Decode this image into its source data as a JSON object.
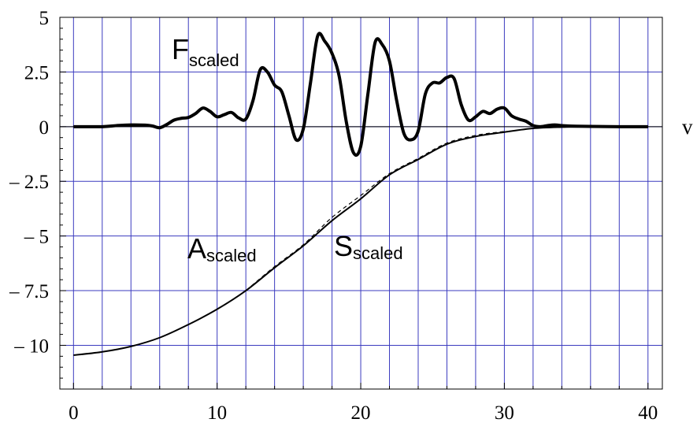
{
  "chart_data": {
    "type": "line",
    "xlabel": "v",
    "ylabel": "",
    "xlim": [
      -0.95,
      41
    ],
    "ylim": [
      -12,
      5
    ],
    "grid": true,
    "grid_color": "#3b3bbf",
    "x_ticks": [
      {
        "value": 0,
        "label": "0"
      },
      {
        "value": 10,
        "label": "10"
      },
      {
        "value": 20,
        "label": "20"
      },
      {
        "value": 30,
        "label": "30"
      },
      {
        "value": 40,
        "label": "40"
      }
    ],
    "y_ticks": [
      {
        "value": 5,
        "label": "5"
      },
      {
        "value": 2.5,
        "label": "2.5"
      },
      {
        "value": 0,
        "label": "0"
      },
      {
        "value": -2.5,
        "label": "– 2.5"
      },
      {
        "value": -5,
        "label": "– 5"
      },
      {
        "value": -7.5,
        "label": "– 7.5"
      },
      {
        "value": -10,
        "label": "– 10"
      }
    ],
    "grid_x": [
      0,
      2,
      4,
      6,
      8,
      10,
      12,
      14,
      16,
      18,
      20,
      22,
      24,
      26,
      28,
      30,
      32,
      34,
      36,
      38,
      40
    ],
    "grid_y": [
      5,
      2.5,
      0,
      -2.5,
      -5,
      -7.5,
      -10
    ],
    "series": [
      {
        "name": "F",
        "subscript": "scaled",
        "style": "thick",
        "x": [
          0,
          2,
          3,
          4,
          5,
          5.5,
          6,
          6.5,
          7,
          7.5,
          8,
          8.5,
          9,
          9.5,
          10,
          10.5,
          11,
          11.5,
          12,
          12.5,
          13,
          13.5,
          14,
          14.5,
          15,
          15.5,
          16,
          16.5,
          17,
          17.5,
          18,
          18.5,
          19,
          19.5,
          20,
          20.5,
          21,
          21.5,
          22,
          22.5,
          23,
          23.5,
          24,
          24.5,
          25,
          25.5,
          26,
          26.5,
          27,
          27.5,
          28,
          28.5,
          29,
          29.5,
          30,
          30.5,
          31,
          31.5,
          32,
          32.5,
          33,
          33.5,
          34,
          34.5,
          35,
          36,
          38,
          40
        ],
        "y": [
          0,
          0,
          0.05,
          0.08,
          0.07,
          0.03,
          -0.05,
          0.1,
          0.3,
          0.38,
          0.42,
          0.6,
          0.85,
          0.7,
          0.45,
          0.55,
          0.65,
          0.4,
          0.35,
          1.2,
          2.6,
          2.5,
          1.9,
          1.6,
          0.5,
          -0.6,
          -0.1,
          2.0,
          4.15,
          3.9,
          3.35,
          2.3,
          0.2,
          -1.2,
          -0.9,
          1.5,
          3.85,
          3.75,
          3.0,
          1.2,
          -0.3,
          -0.6,
          -0.2,
          1.5,
          2.0,
          2.0,
          2.25,
          2.2,
          1.0,
          0.3,
          0.45,
          0.7,
          0.6,
          0.8,
          0.85,
          0.5,
          0.35,
          0.25,
          0.05,
          0.0,
          0.05,
          0.08,
          0.05,
          0.03,
          0.02,
          0.01,
          0,
          0
        ]
      },
      {
        "name": "A",
        "subscript": "scaled",
        "style": "solid",
        "x": [
          0,
          2,
          4,
          6,
          8,
          10,
          12,
          14,
          16,
          18,
          20,
          22,
          24,
          26,
          28,
          30,
          32,
          34,
          36,
          38,
          40
        ],
        "y": [
          -10.45,
          -10.3,
          -10.05,
          -9.65,
          -9.05,
          -8.35,
          -7.5,
          -6.45,
          -5.45,
          -4.3,
          -3.3,
          -2.2,
          -1.5,
          -0.8,
          -0.45,
          -0.25,
          -0.08,
          -0.02,
          0,
          0,
          0
        ]
      },
      {
        "name": "S",
        "subscript": "scaled",
        "style": "dashed",
        "x": [
          12,
          14,
          16,
          18,
          20,
          22,
          24,
          26,
          28,
          30
        ],
        "y": [
          -7.5,
          -6.4,
          -5.4,
          -4.15,
          -3.15,
          -2.15,
          -1.45,
          -0.75,
          -0.4,
          -0.22
        ]
      }
    ]
  }
}
